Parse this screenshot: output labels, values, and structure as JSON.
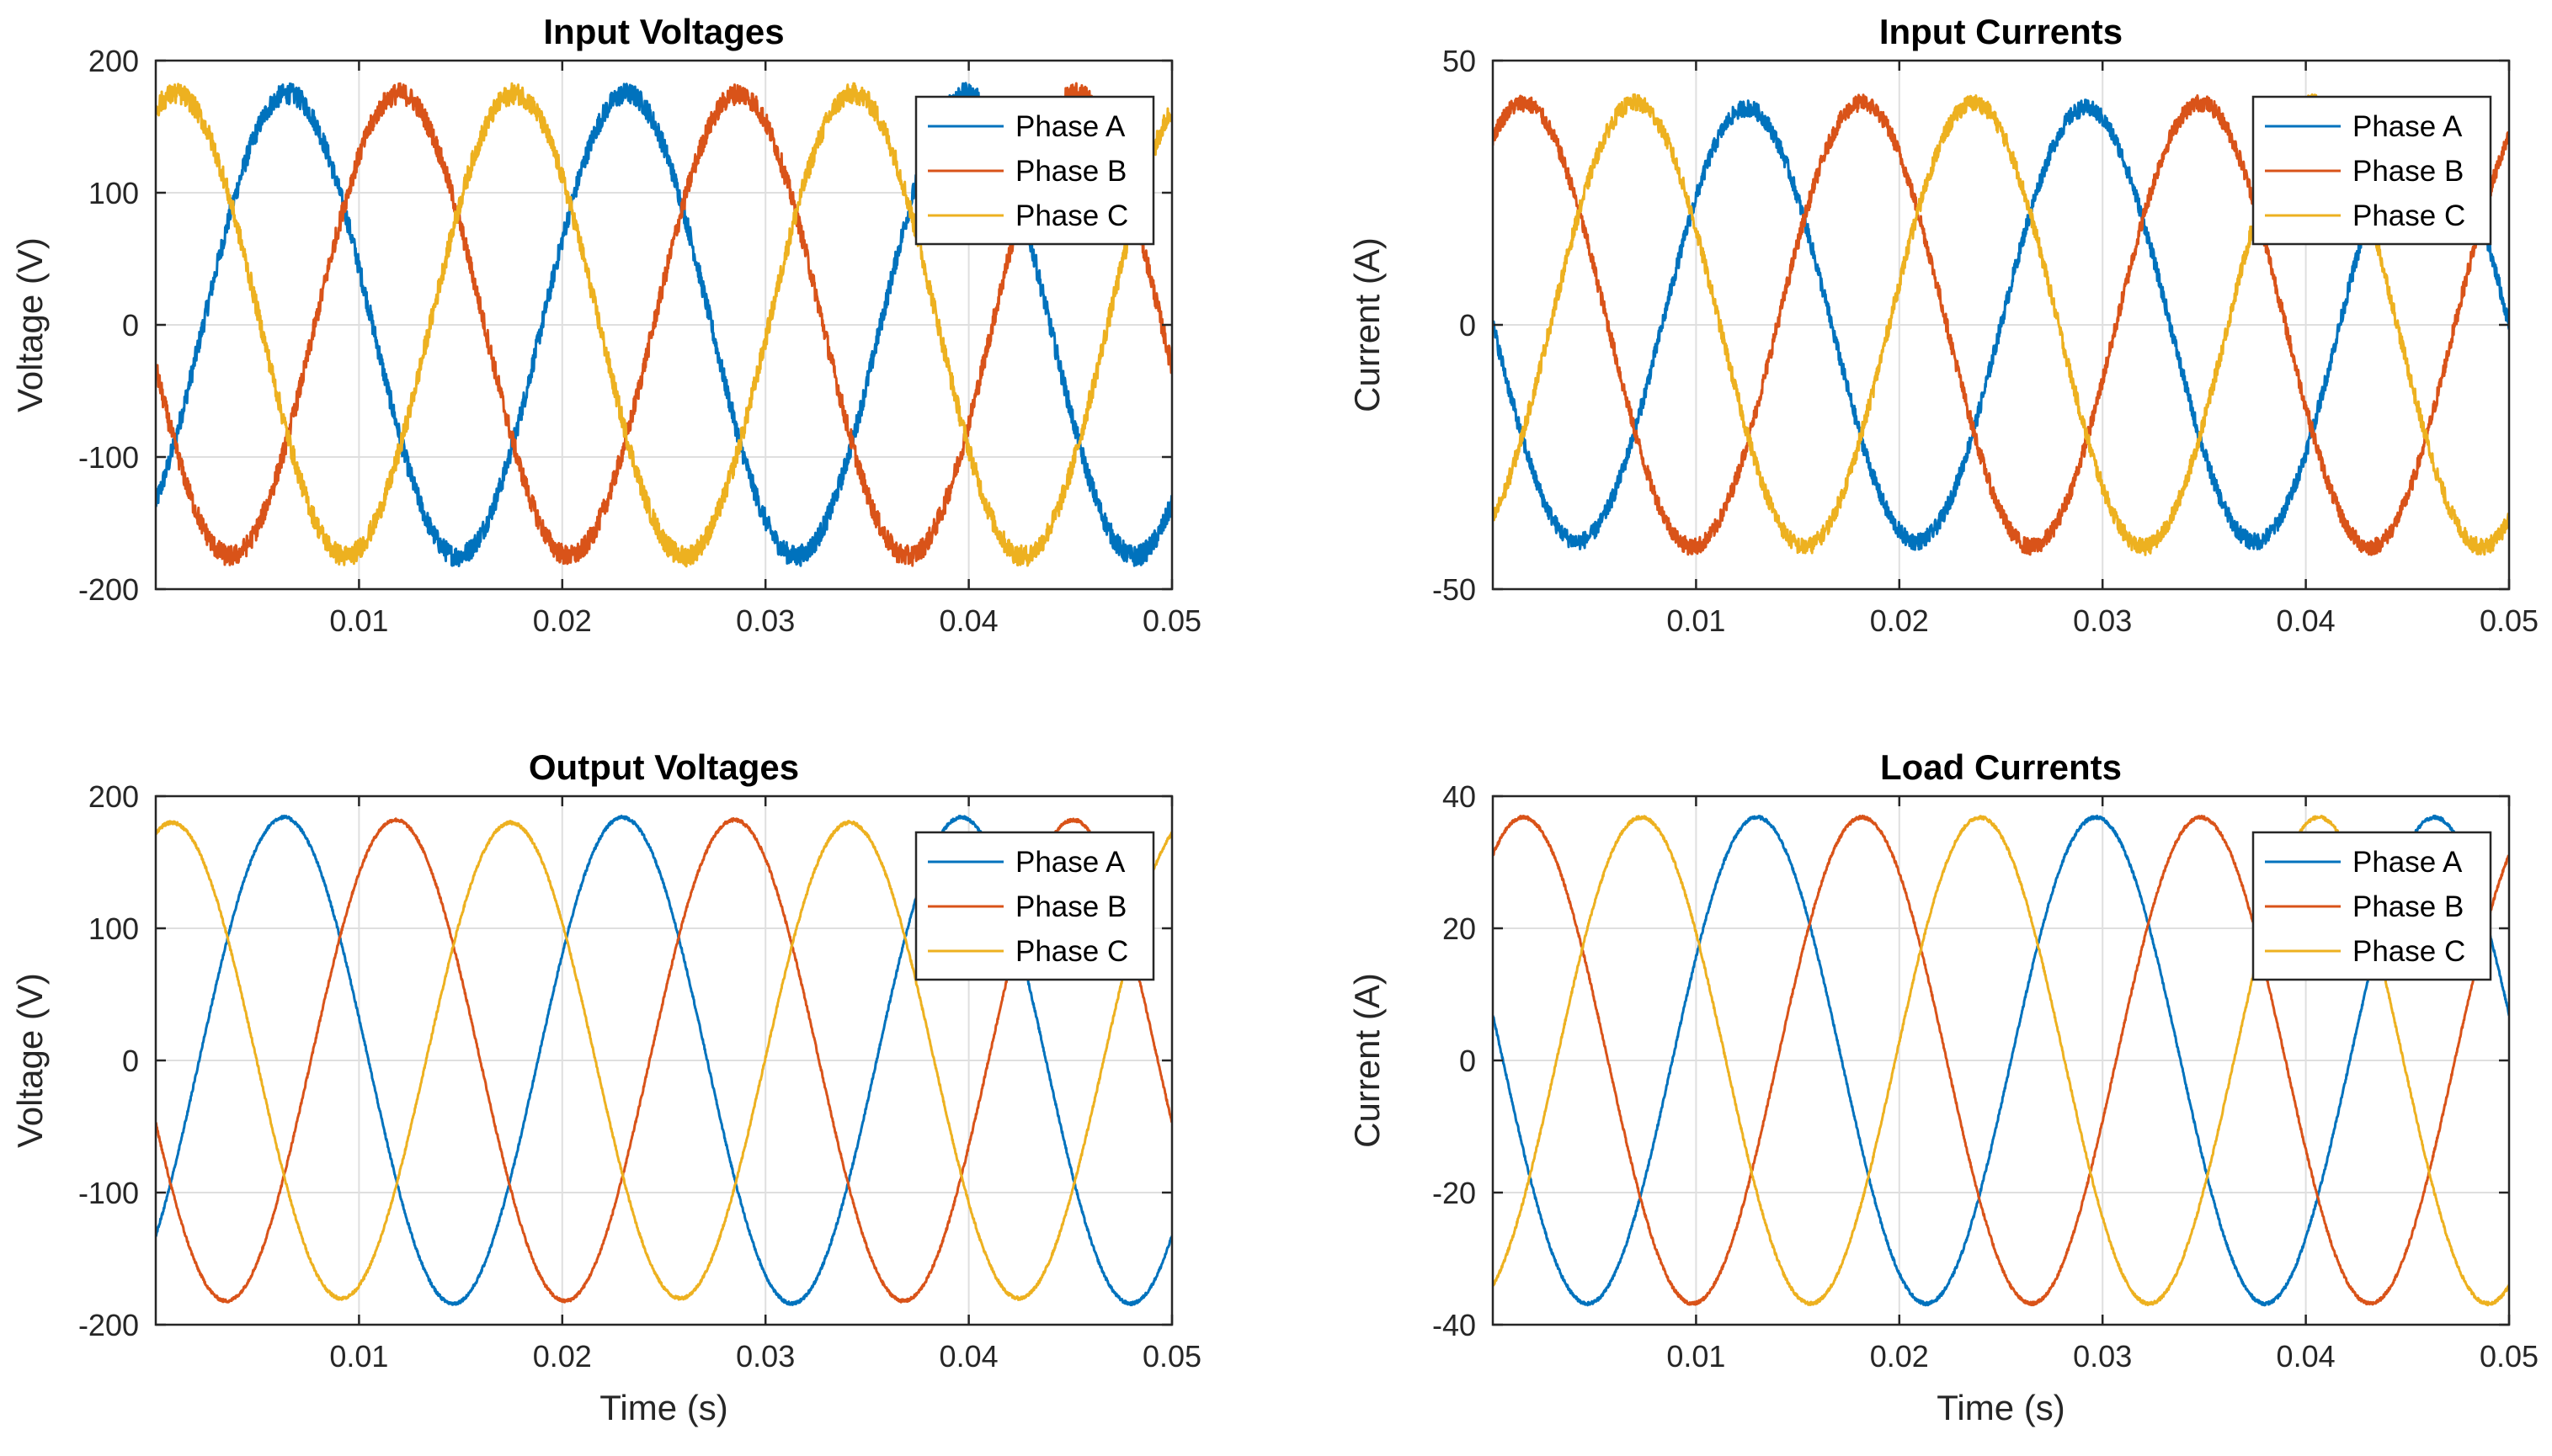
{
  "chart_data": [
    {
      "type": "line",
      "title": "Input Voltages",
      "xlabel": "",
      "ylabel": "Voltage (V)",
      "xlim": [
        0,
        0.05
      ],
      "ylim": [
        -200,
        200
      ],
      "xticks": [
        0.01,
        0.02,
        0.03,
        0.04,
        0.05
      ],
      "xtick_labels": [
        "0.01",
        "0.02",
        "0.03",
        "0.04",
        "0.05"
      ],
      "yticks": [
        -200,
        -100,
        0,
        100,
        200
      ],
      "ytick_labels": [
        "-200",
        "-100",
        "0",
        "100",
        "200"
      ],
      "grid": true,
      "legend_position": "top-right",
      "frequency_hz": 60,
      "noise": 8,
      "series": [
        {
          "name": "Phase A",
          "color": "#0072BD",
          "amplitude": 175,
          "peak_time": 0.0065
        },
        {
          "name": "Phase B",
          "color": "#D95319",
          "amplitude": 175,
          "peak_time": 0.012
        },
        {
          "name": "Phase C",
          "color": "#EDB120",
          "amplitude": 175,
          "peak_time": 0.001
        }
      ]
    },
    {
      "type": "line",
      "title": "Input Currents",
      "xlabel": "",
      "ylabel": "Current (A)",
      "xlim": [
        0,
        0.05
      ],
      "ylim": [
        -50,
        50
      ],
      "xticks": [
        0.01,
        0.02,
        0.03,
        0.04,
        0.05
      ],
      "xtick_labels": [
        "0.01",
        "0.02",
        "0.03",
        "0.04",
        "0.05"
      ],
      "yticks": [
        -50,
        0,
        50
      ],
      "ytick_labels": [
        "-50",
        "0",
        "50"
      ],
      "grid": true,
      "legend_position": "top-right",
      "frequency_hz": 60,
      "noise": 1.6,
      "series": [
        {
          "name": "Phase A",
          "color": "#0072BD",
          "amplitude": 41,
          "peak_time": 0.0125
        },
        {
          "name": "Phase B",
          "color": "#D95319",
          "amplitude": 42,
          "peak_time": 0.0015
        },
        {
          "name": "Phase C",
          "color": "#EDB120",
          "amplitude": 42,
          "peak_time": 0.007
        }
      ]
    },
    {
      "type": "line",
      "title": "Output Voltages",
      "xlabel": "Time (s)",
      "ylabel": "Voltage (V)",
      "xlim": [
        0,
        0.05
      ],
      "ylim": [
        -200,
        200
      ],
      "xticks": [
        0.01,
        0.02,
        0.03,
        0.04,
        0.05
      ],
      "xtick_labels": [
        "0.01",
        "0.02",
        "0.03",
        "0.04",
        "0.05"
      ],
      "yticks": [
        -200,
        -100,
        0,
        100,
        200
      ],
      "ytick_labels": [
        "-200",
        "-100",
        "0",
        "100",
        "200"
      ],
      "grid": true,
      "legend_position": "top-right",
      "frequency_hz": 60,
      "noise": 1.2,
      "series": [
        {
          "name": "Phase A",
          "color": "#0072BD",
          "amplitude": 184,
          "peak_time": 0.0063
        },
        {
          "name": "Phase B",
          "color": "#D95319",
          "amplitude": 182,
          "peak_time": 0.0118
        },
        {
          "name": "Phase C",
          "color": "#EDB120",
          "amplitude": 180,
          "peak_time": 0.0008
        }
      ]
    },
    {
      "type": "line",
      "title": "Load Currents",
      "xlabel": "Time (s)",
      "ylabel": "Current (A)",
      "xlim": [
        0,
        0.05
      ],
      "ylim": [
        -40,
        40
      ],
      "xticks": [
        0.01,
        0.02,
        0.03,
        0.04,
        0.05
      ],
      "xtick_labels": [
        "0.01",
        "0.02",
        "0.03",
        "0.04",
        "0.05"
      ],
      "yticks": [
        -40,
        -20,
        0,
        20,
        40
      ],
      "ytick_labels": [
        "-40",
        "-20",
        "0",
        "20",
        "40"
      ],
      "grid": true,
      "legend_position": "top-right",
      "frequency_hz": 60,
      "noise": 0.25,
      "series": [
        {
          "name": "Phase A",
          "color": "#0072BD",
          "amplitude": 36.8,
          "peak_time": 0.013
        },
        {
          "name": "Phase B",
          "color": "#D95319",
          "amplitude": 36.8,
          "peak_time": 0.0015
        },
        {
          "name": "Phase C",
          "color": "#EDB120",
          "amplitude": 36.8,
          "peak_time": 0.0073
        }
      ]
    }
  ]
}
